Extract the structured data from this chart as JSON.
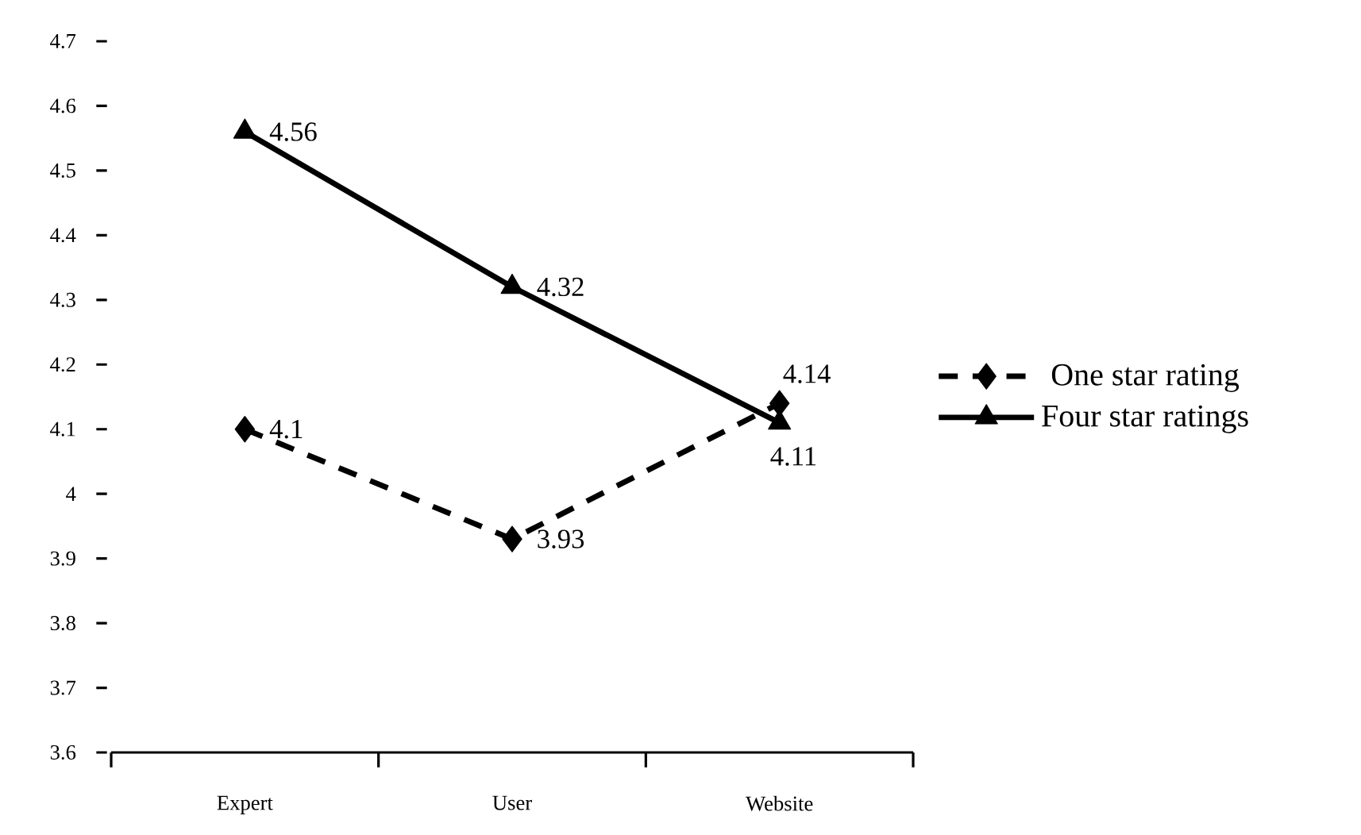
{
  "chart_data": {
    "type": "line",
    "categories": [
      "Expert",
      "User",
      "Website"
    ],
    "series": [
      {
        "name": "One star rating",
        "color": "#000000",
        "values": [
          4.1,
          3.93,
          4.14
        ],
        "marker": "diamond",
        "line_style": "dashed"
      },
      {
        "name": "Four star ratings",
        "color": "#000000",
        "values": [
          4.56,
          4.32,
          4.11
        ],
        "marker": "triangle",
        "line_style": "solid"
      }
    ],
    "ylim": [
      3.6,
      4.7
    ],
    "yticks": [
      3.6,
      3.7,
      3.8,
      3.9,
      4,
      4.1,
      4.2,
      4.3,
      4.4,
      4.5,
      4.6,
      4.7
    ],
    "data_labels": true,
    "legend": "right"
  }
}
